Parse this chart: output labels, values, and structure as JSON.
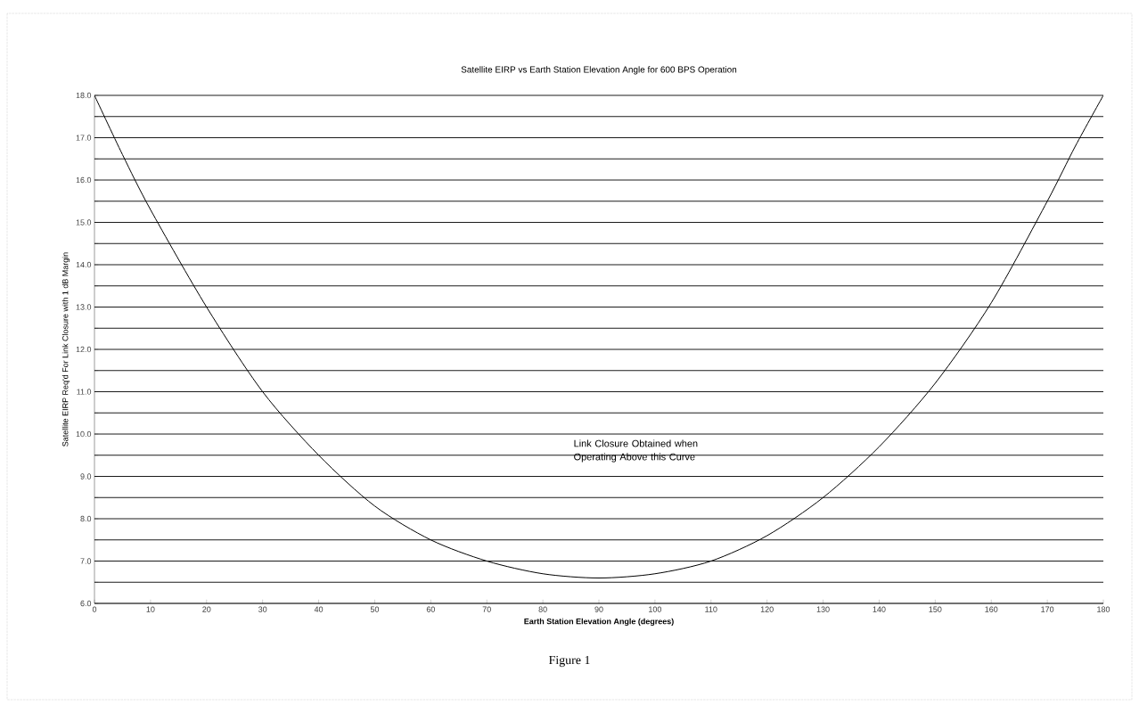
{
  "chart_data": {
    "type": "line",
    "title": "Satellite EIRP vs Earth Station Elevation Angle for 600 BPS Operation",
    "xlabel": "Earth Station Elevation Angle (degrees)",
    "ylabel": "Satellite EIRP Req'd For Link Closure with 1 dB Margin",
    "x": [
      0,
      5,
      10,
      20,
      30,
      40,
      50,
      60,
      70,
      80,
      90,
      100,
      110,
      120,
      130,
      140,
      150,
      160,
      170,
      175,
      180
    ],
    "series": [
      {
        "color": "#000000",
        "values": [
          18.0,
          16.6,
          15.3,
          13.0,
          11.0,
          9.5,
          8.3,
          7.5,
          7.0,
          6.7,
          6.6,
          6.7,
          7.0,
          7.6,
          8.5,
          9.7,
          11.2,
          13.1,
          15.5,
          16.8,
          18.0
        ]
      }
    ],
    "xlim": [
      0,
      180
    ],
    "ylim": [
      6,
      18
    ],
    "xticks": [
      0,
      10,
      20,
      30,
      40,
      50,
      60,
      70,
      80,
      90,
      100,
      110,
      120,
      130,
      140,
      150,
      160,
      170,
      180
    ],
    "yticks": [
      {
        "value": 6,
        "label": "6.0"
      },
      {
        "value": 6.5,
        "label": null
      },
      {
        "value": 7,
        "label": "7.0"
      },
      {
        "value": 7.5,
        "label": null
      },
      {
        "value": 8,
        "label": "8.0"
      },
      {
        "value": 8.5,
        "label": null
      },
      {
        "value": 9,
        "label": "9.0"
      },
      {
        "value": 9.5,
        "label": null
      },
      {
        "value": 10,
        "label": "10.0"
      },
      {
        "value": 10.5,
        "label": null
      },
      {
        "value": 11,
        "label": "11.0"
      },
      {
        "value": 11.5,
        "label": null
      },
      {
        "value": 12,
        "label": "12.0"
      },
      {
        "value": 12.5,
        "label": null
      },
      {
        "value": 13,
        "label": "13.0"
      },
      {
        "value": 13.5,
        "label": null
      },
      {
        "value": 14,
        "label": "14.0"
      },
      {
        "value": 14.5,
        "label": null
      },
      {
        "value": 15,
        "label": "15.0"
      },
      {
        "value": 15.5,
        "label": null
      },
      {
        "value": 16,
        "label": "16.0"
      },
      {
        "value": 16.5,
        "label": null
      },
      {
        "value": 17,
        "label": "17.0"
      },
      {
        "value": 17.5,
        "label": null
      },
      {
        "value": 18,
        "label": "18.0"
      }
    ],
    "grid": "y",
    "line_style": "solid",
    "marker": "none",
    "annotations": [
      "Link Closure Obtained when Operating Above this Curve",
      "Figure 1"
    ]
  }
}
